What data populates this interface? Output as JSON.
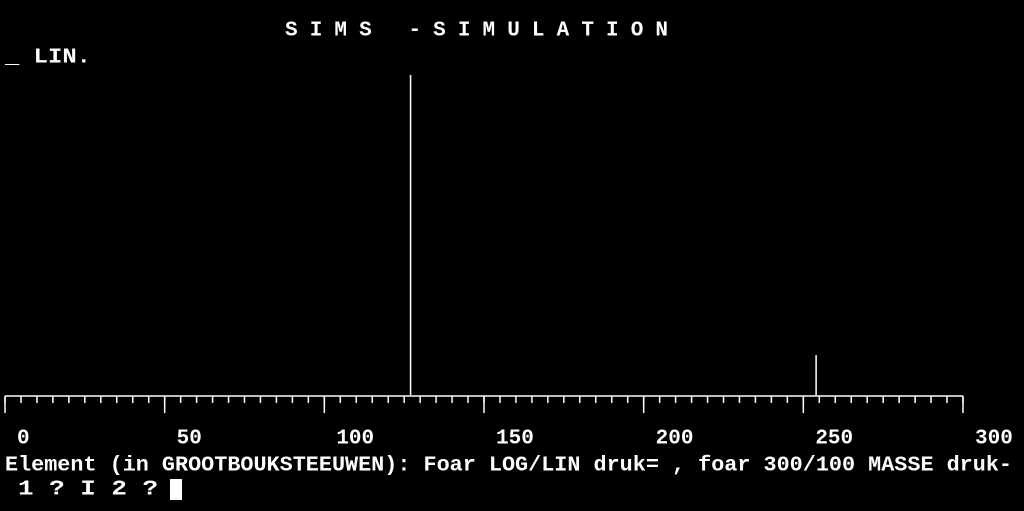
{
  "chart_data": {
    "type": "stick",
    "title": "SIMS -SIMULATION",
    "scale_label": "_ LIN.",
    "x": [
      127,
      254
    ],
    "values": [
      100,
      12.5
    ],
    "color": "#ffffff",
    "xlim": [
      0,
      300
    ],
    "xticks": [
      0,
      50,
      100,
      150,
      200,
      250,
      300
    ],
    "xminorticks": [
      0,
      5,
      10,
      15,
      20,
      25,
      30,
      35,
      40,
      45,
      50,
      55,
      60,
      65,
      70,
      75,
      80,
      85,
      90,
      95,
      100,
      105,
      110,
      115,
      120,
      125,
      130,
      135,
      140,
      145,
      150,
      155,
      160,
      165,
      170,
      175,
      180,
      185,
      190,
      195,
      200,
      205,
      210,
      215,
      220,
      225,
      230,
      235,
      240,
      245,
      250,
      255,
      260,
      265,
      270,
      275,
      280,
      285,
      290,
      295,
      300
    ],
    "ylim": [
      0,
      100
    ]
  },
  "prompt": {
    "line1": "Element (in GROOTBOUKSTEEUWEN):   Foar LOG/LIN druk= , foar 300/100 MASSE druk-",
    "line2": "1 ? I   2 ?"
  }
}
